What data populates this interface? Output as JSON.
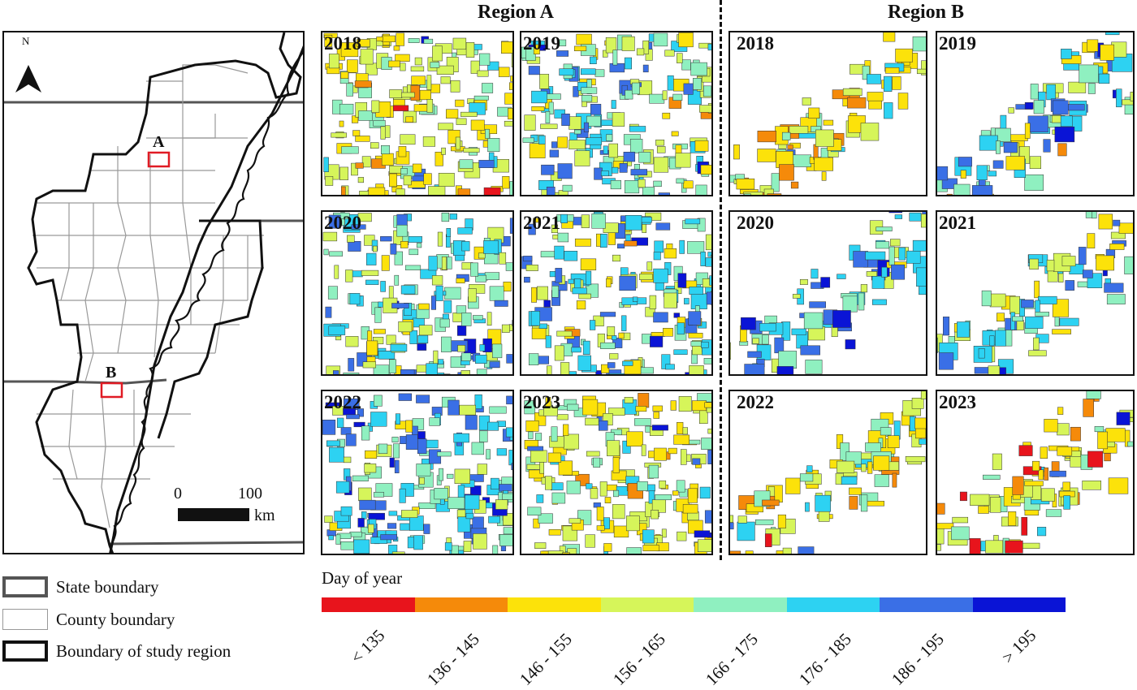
{
  "overview": {
    "north_label": "N",
    "marker_a": "A",
    "marker_b": "B",
    "scale": {
      "zero": "0",
      "hundred": "100",
      "unit": "km"
    }
  },
  "regions": {
    "a": {
      "title": "Region A",
      "panels": [
        {
          "year": "2018"
        },
        {
          "year": "2019"
        },
        {
          "year": "2020"
        },
        {
          "year": "2021"
        },
        {
          "year": "2022"
        },
        {
          "year": "2023"
        }
      ]
    },
    "b": {
      "title": "Region B",
      "panels": [
        {
          "year": "2018"
        },
        {
          "year": "2019"
        },
        {
          "year": "2020"
        },
        {
          "year": "2021"
        },
        {
          "year": "2022"
        },
        {
          "year": "2023"
        }
      ]
    }
  },
  "legend": {
    "state": "State boundary",
    "county": "County boundary",
    "study": "Boundary of study region"
  },
  "colorbar": {
    "title": "Day of year",
    "classes": [
      {
        "label": "< 135",
        "color": "#e8141c"
      },
      {
        "label": "136 - 145",
        "color": "#f58a0a"
      },
      {
        "label": "146 - 155",
        "color": "#fce20a"
      },
      {
        "label": "156 - 165",
        "color": "#d6f55a"
      },
      {
        "label": "166 - 175",
        "color": "#8ff0c0"
      },
      {
        "label": "176 - 185",
        "color": "#2dd2f2"
      },
      {
        "label": "186 - 195",
        "color": "#3a6fe6"
      },
      {
        "label": "> 195",
        "color": "#0a14d6"
      }
    ]
  }
}
